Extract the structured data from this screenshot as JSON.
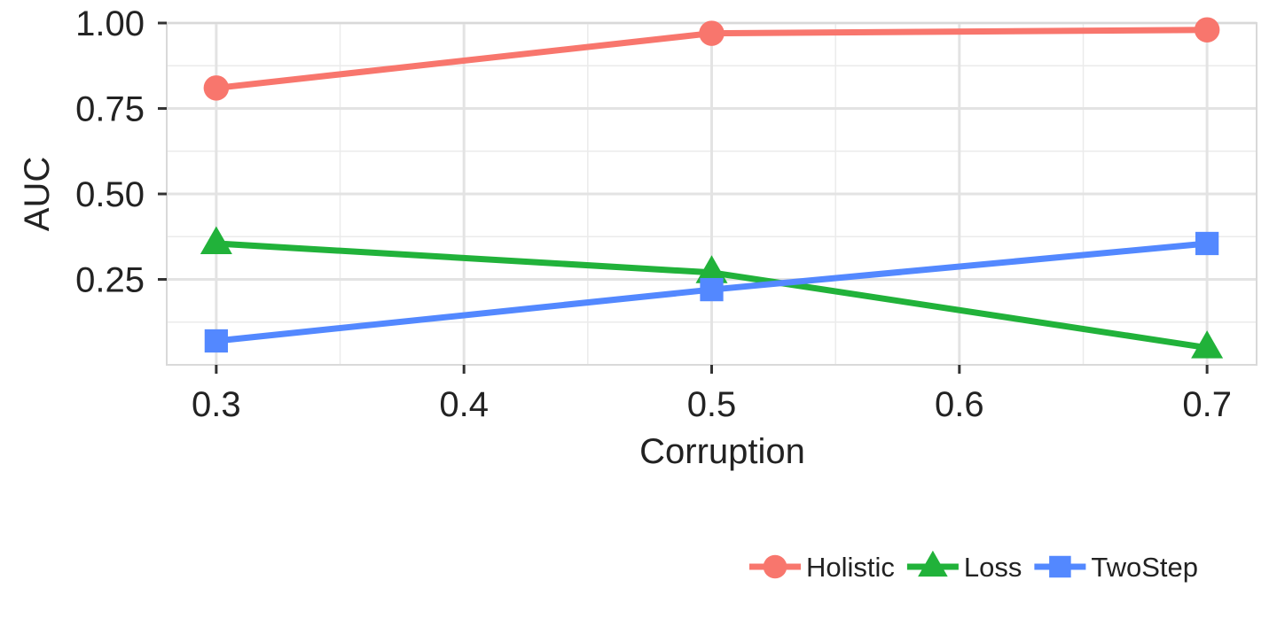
{
  "chart_data": {
    "type": "line",
    "xlabel": "Corruption",
    "ylabel": "AUC",
    "x": [
      0.3,
      0.5,
      0.7
    ],
    "xlim": [
      0.28,
      0.72
    ],
    "ylim": [
      0.0,
      1.0
    ],
    "x_ticks": [
      "0.3",
      "0.4",
      "0.5",
      "0.6",
      "0.7"
    ],
    "y_ticks": [
      "0.25",
      "0.50",
      "0.75",
      "1.00"
    ],
    "grid": true,
    "legend_position": "bottom-right",
    "series": [
      {
        "name": "Holistic",
        "color": "#F8766D",
        "marker": "circle",
        "values": [
          0.81,
          0.97,
          0.98
        ]
      },
      {
        "name": "Loss",
        "color": "#21B23A",
        "marker": "triangle",
        "values": [
          0.355,
          0.27,
          0.05
        ]
      },
      {
        "name": "TwoStep",
        "color": "#5388FF",
        "marker": "square",
        "values": [
          0.07,
          0.22,
          0.355
        ]
      }
    ]
  }
}
